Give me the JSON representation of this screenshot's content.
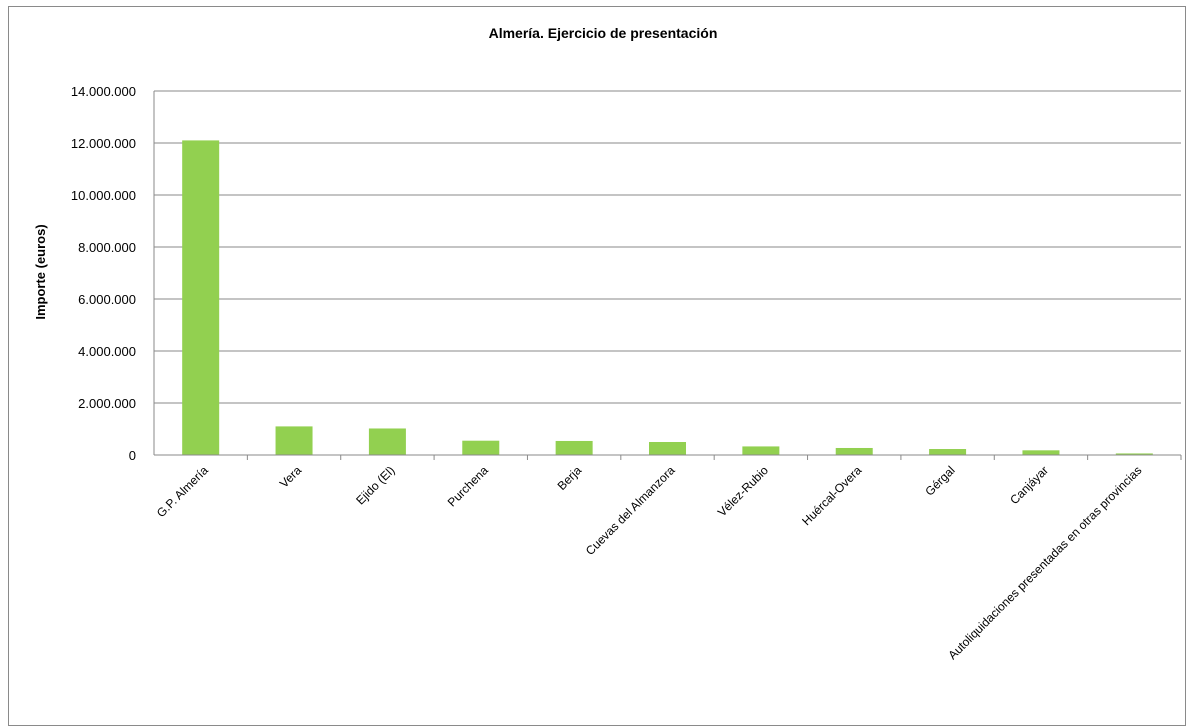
{
  "chart_data": {
    "type": "bar",
    "title": "Almería. Ejercicio de presentación",
    "xlabel": "",
    "ylabel": "Importe (euros)",
    "ylim": [
      0,
      14000000
    ],
    "yticks": [
      0,
      2000000,
      4000000,
      6000000,
      8000000,
      10000000,
      12000000,
      14000000
    ],
    "ytick_labels": [
      "0",
      "2.000.000",
      "4.000.000",
      "6.000.000",
      "8.000.000",
      "10.000.000",
      "12.000.000",
      "14.000.000"
    ],
    "grid": true,
    "legend": "none",
    "bar_color": "#92d050",
    "categories": [
      "G.P. Almería",
      "Vera",
      "Ejido (El)",
      "Purchena",
      "Berja",
      "Cuevas del Almanzora",
      "Vélez-Rubio",
      "Huércal-Overa",
      "Gérgal",
      "Canjáyar",
      "Autoliquidaciones presentadas en otras provincias"
    ],
    "values": [
      12100000,
      1100000,
      1020000,
      550000,
      540000,
      500000,
      330000,
      270000,
      230000,
      180000,
      60000
    ]
  }
}
